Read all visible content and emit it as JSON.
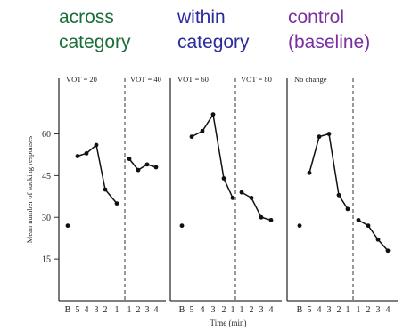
{
  "headings": [
    {
      "lines": [
        "across",
        "category"
      ],
      "color": "#1a6e3a"
    },
    {
      "lines": [
        "within",
        "category"
      ],
      "color": "#2b2b9e"
    },
    {
      "lines": [
        "control",
        "(baseline)"
      ],
      "color": "#7a2f9e"
    }
  ],
  "chart_data": {
    "type": "line",
    "ylabel": "Mean number of sucking responses",
    "xlabel": "Time (min)",
    "ylim": [
      0,
      80
    ],
    "yticks": [
      15,
      30,
      45,
      60
    ],
    "grid": false,
    "panels": [
      {
        "name": "across category",
        "labels": [
          "VOT = 20",
          "VOT = 40"
        ],
        "ticks_before": [
          "B",
          "5",
          "4",
          "3",
          "2",
          "1"
        ],
        "ticks_after": [
          "1",
          "2",
          "3",
          "4"
        ],
        "baseline": 27,
        "before": [
          52,
          53,
          56,
          40,
          35
        ],
        "after": [
          51,
          47,
          49,
          48
        ]
      },
      {
        "name": "within category",
        "labels": [
          "VOT = 60",
          "VOT = 80"
        ],
        "ticks_before": [
          "B",
          "5",
          "4",
          "3",
          "2",
          "1"
        ],
        "ticks_after": [
          "1",
          "2",
          "3",
          "4"
        ],
        "baseline": 27,
        "before": [
          59,
          61,
          67,
          44,
          37
        ],
        "after": [
          39,
          37,
          30,
          29
        ]
      },
      {
        "name": "control",
        "labels": [
          "No change",
          ""
        ],
        "ticks_before": [
          "B",
          "5",
          "4",
          "3",
          "2",
          "1"
        ],
        "ticks_after": [
          "1",
          "2",
          "3",
          "4"
        ],
        "baseline": 27,
        "before": [
          46,
          59,
          60,
          38,
          33
        ],
        "after": [
          29,
          27,
          22,
          18
        ]
      }
    ]
  }
}
